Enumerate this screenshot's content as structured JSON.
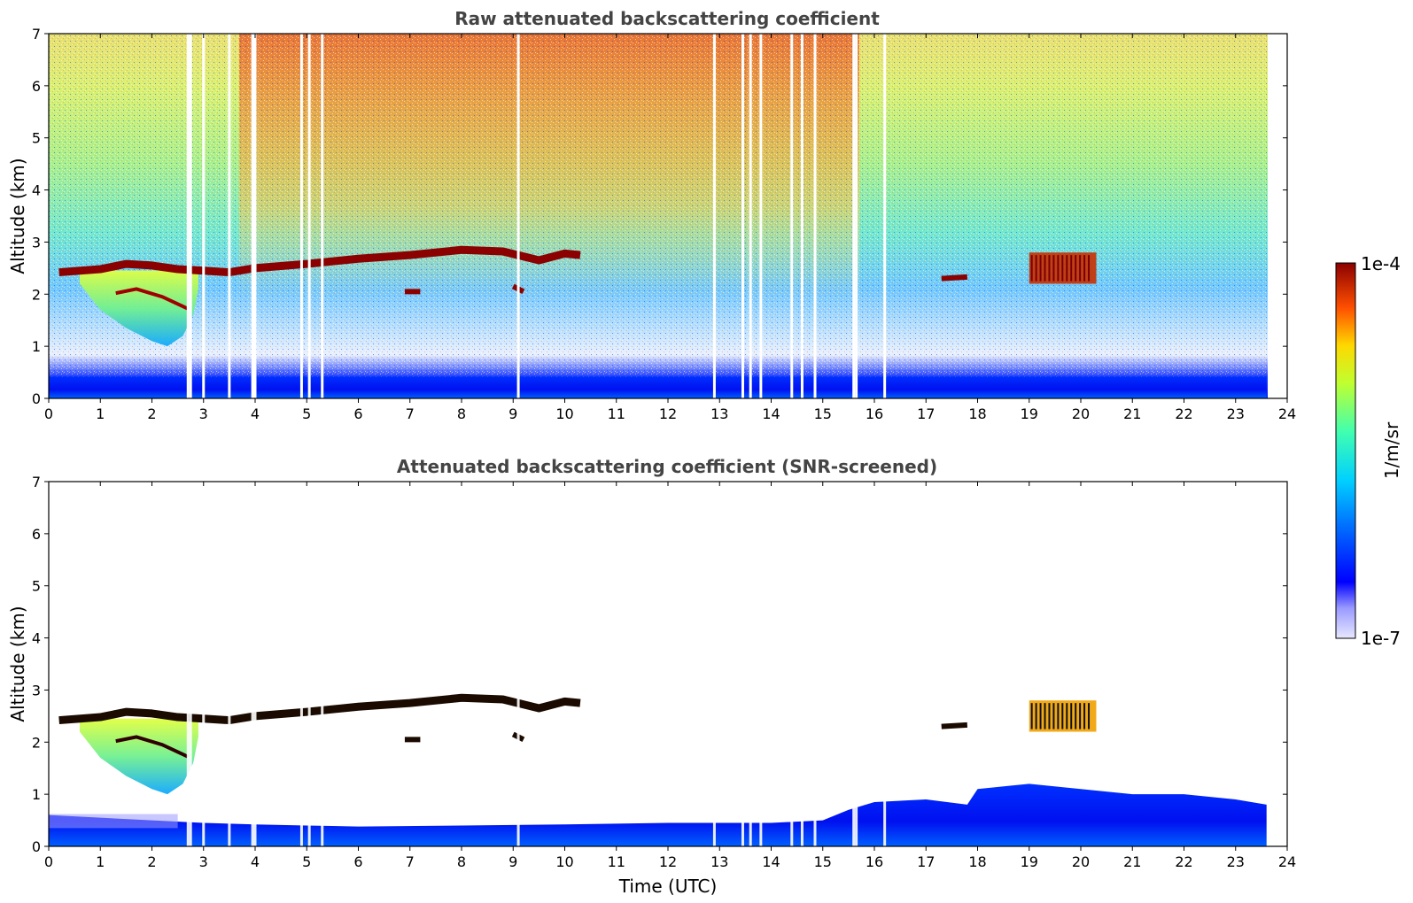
{
  "chart_data": [
    {
      "type": "heatmap",
      "title": "Raw attenuated backscattering coefficient",
      "xlabel": "",
      "ylabel": "Altitude (km)",
      "xlim": [
        0,
        24
      ],
      "ylim": [
        0,
        7
      ],
      "x_ticks": [
        0,
        1,
        2,
        3,
        4,
        5,
        6,
        7,
        8,
        9,
        10,
        11,
        12,
        13,
        14,
        15,
        16,
        17,
        18,
        19,
        20,
        21,
        22,
        23,
        24
      ],
      "y_ticks": [
        0,
        1,
        2,
        3,
        4,
        5,
        6,
        7
      ],
      "data_end_time": 23.6,
      "cloud_base_layer": [
        [
          0.2,
          2.42
        ],
        [
          1,
          2.48
        ],
        [
          1.5,
          2.58
        ],
        [
          2,
          2.55
        ],
        [
          2.5,
          2.48
        ],
        [
          3,
          2.45
        ],
        [
          3.5,
          2.42
        ],
        [
          4,
          2.5
        ],
        [
          5,
          2.58
        ],
        [
          6,
          2.68
        ],
        [
          7,
          2.75
        ],
        [
          8,
          2.85
        ],
        [
          8.8,
          2.82
        ],
        [
          9.5,
          2.65
        ],
        [
          10,
          2.78
        ],
        [
          10.3,
          2.75
        ]
      ],
      "aerosol_plume": [
        [
          0.6,
          2.2
        ],
        [
          1,
          1.7
        ],
        [
          1.5,
          1.35
        ],
        [
          2,
          1.1
        ],
        [
          2.3,
          1.0
        ],
        [
          2.6,
          1.2
        ],
        [
          2.8,
          1.6
        ],
        [
          2.9,
          2.1
        ]
      ],
      "gaps_utc": [
        2.7,
        2.75,
        3.0,
        3.5,
        3.95,
        4.0,
        4.9,
        5.05,
        5.3,
        9.1,
        12.9,
        13.45,
        13.6,
        13.8,
        14.4,
        14.6,
        14.85,
        15.6,
        15.65,
        16.2
      ],
      "colormap": "jet",
      "cbar": {
        "label": "1/m/sr",
        "min_label": "1e-7",
        "max_label": "1e-4"
      }
    },
    {
      "type": "heatmap",
      "title": "Attenuated backscattering coefficient (SNR-screened)",
      "xlabel": "Time (UTC)",
      "ylabel": "Altitude (km)",
      "xlim": [
        0,
        24
      ],
      "ylim": [
        0,
        7
      ],
      "x_ticks": [
        0,
        1,
        2,
        3,
        4,
        5,
        6,
        7,
        8,
        9,
        10,
        11,
        12,
        13,
        14,
        15,
        16,
        17,
        18,
        19,
        20,
        21,
        22,
        23,
        24
      ],
      "y_ticks": [
        0,
        1,
        2,
        3,
        4,
        5,
        6,
        7
      ],
      "boundary_layer_top": [
        [
          0,
          0.6
        ],
        [
          1,
          0.55
        ],
        [
          2,
          0.5
        ],
        [
          3,
          0.45
        ],
        [
          4,
          0.42
        ],
        [
          5,
          0.4
        ],
        [
          6,
          0.38
        ],
        [
          8,
          0.4
        ],
        [
          10,
          0.42
        ],
        [
          12,
          0.45
        ],
        [
          14,
          0.45
        ],
        [
          15,
          0.5
        ],
        [
          15.5,
          0.7
        ],
        [
          16,
          0.85
        ],
        [
          17,
          0.9
        ],
        [
          17.8,
          0.8
        ],
        [
          18,
          1.1
        ],
        [
          19,
          1.2
        ],
        [
          20,
          1.1
        ],
        [
          21,
          1.0
        ],
        [
          22,
          1.0
        ],
        [
          23,
          0.9
        ],
        [
          23.6,
          0.8
        ]
      ]
    }
  ],
  "colorbar": {
    "max_label": "1e-4",
    "min_label": "1e-7",
    "unit_label": "1/m/sr"
  },
  "panels": [
    {
      "title": "Raw attenuated backscattering coefficient",
      "ylabel": "Altitude (km)"
    },
    {
      "title": "Attenuated backscattering coefficient (SNR-screened)",
      "ylabel": "Altitude (km)",
      "xlabel": "Time (UTC)"
    }
  ]
}
